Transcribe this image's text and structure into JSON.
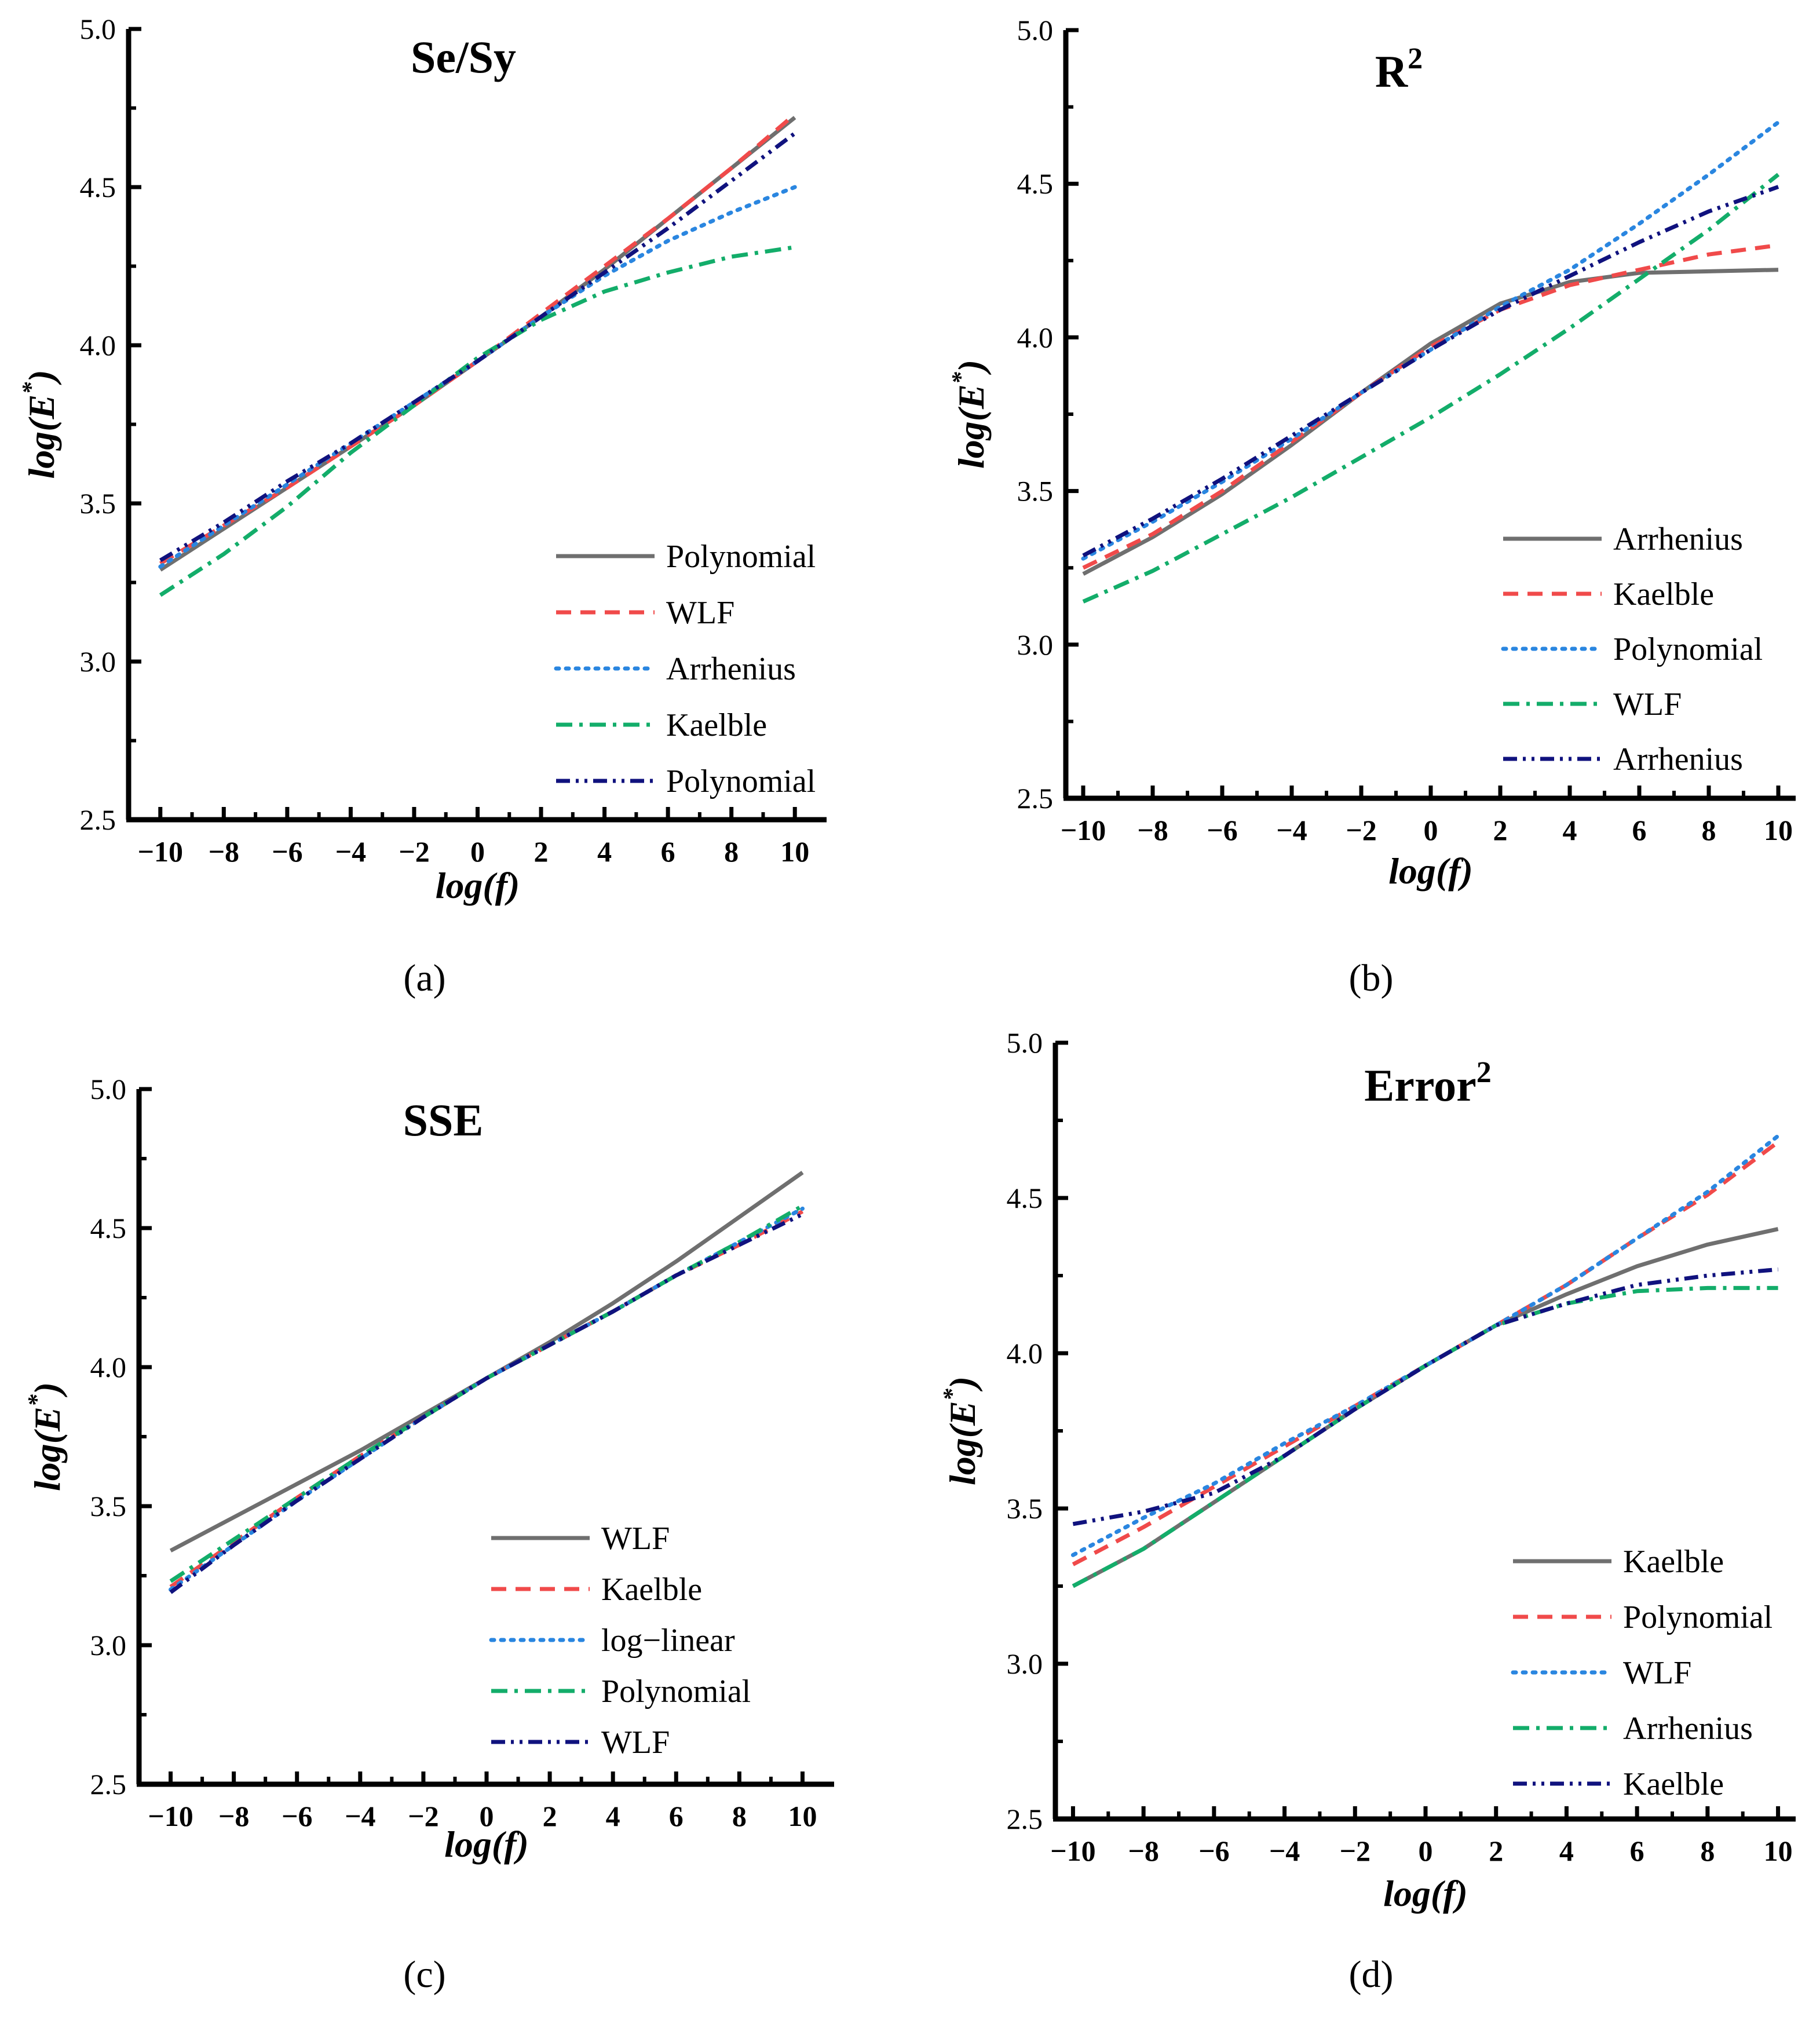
{
  "colors": {
    "gray": "#6f6f6f",
    "red": "#f04a4a",
    "blue": "#2a86e0",
    "green": "#13ad6a",
    "navy": "#10127e"
  },
  "styles": {
    "solid": "solid",
    "dashed": "dash",
    "dotted": "dot",
    "dashdot": "dashdot",
    "dashdotdot": "dashdotdot"
  },
  "chart_data": [
    {
      "type": "line",
      "panel_label": "(a)",
      "title": "Se/Sy",
      "xlabel": "log(f)",
      "ylabel": "log(E*)",
      "xlim": [
        -11,
        11
      ],
      "ylim": [
        2.5,
        5.0
      ],
      "xticks": [
        -10,
        -8,
        -6,
        -4,
        -2,
        0,
        2,
        4,
        6,
        8,
        10
      ],
      "yticks": [
        2.5,
        3.0,
        3.5,
        4.0,
        4.5,
        5.0
      ],
      "ytick_labels": [
        "2.5",
        "3.0",
        "3.5",
        "4.0",
        "4.5",
        "5.0"
      ],
      "xtick_labels": [
        "−10",
        "−8",
        "−6",
        "−4",
        "−2",
        "0",
        "2",
        "4",
        "6",
        "8",
        "10"
      ],
      "legend_position": "lower-right",
      "series": [
        {
          "name": "Polynomial",
          "color": "gray",
          "style": "solid",
          "x": [
            -10,
            -8,
            -6,
            -4,
            -2,
            0,
            2,
            4,
            6,
            8,
            10
          ],
          "y": [
            3.29,
            3.42,
            3.55,
            3.68,
            3.81,
            3.95,
            4.09,
            4.24,
            4.4,
            4.56,
            4.72
          ]
        },
        {
          "name": "WLF",
          "color": "red",
          "style": "dashed",
          "x": [
            -10,
            -8,
            -6,
            -4,
            -2,
            0,
            2,
            4,
            6,
            8,
            10
          ],
          "y": [
            3.31,
            3.43,
            3.55,
            3.68,
            3.81,
            3.95,
            4.1,
            4.25,
            4.4,
            4.56,
            4.73
          ]
        },
        {
          "name": "Arrhenius",
          "color": "blue",
          "style": "dotted",
          "x": [
            -10,
            -8,
            -6,
            -4,
            -2,
            0,
            2,
            4,
            6,
            8,
            10
          ],
          "y": [
            3.3,
            3.43,
            3.56,
            3.69,
            3.82,
            3.95,
            4.09,
            4.22,
            4.33,
            4.42,
            4.5
          ]
        },
        {
          "name": "Kaelble",
          "color": "green",
          "style": "dashdot",
          "x": [
            -10,
            -8,
            -6,
            -4,
            -2,
            0,
            2,
            4,
            6,
            8,
            10
          ],
          "y": [
            3.21,
            3.34,
            3.49,
            3.66,
            3.81,
            3.96,
            4.08,
            4.17,
            4.23,
            4.28,
            4.31
          ]
        },
        {
          "name": "Polynomial",
          "color": "navy",
          "style": "dashdotdot",
          "x": [
            -10,
            -8,
            -6,
            -4,
            -2,
            0,
            2,
            4,
            6,
            8,
            10
          ],
          "y": [
            3.32,
            3.44,
            3.57,
            3.69,
            3.82,
            3.95,
            4.09,
            4.23,
            4.37,
            4.52,
            4.67
          ]
        }
      ]
    },
    {
      "type": "line",
      "panel_label": "(b)",
      "title": "R2",
      "title_main": "R",
      "title_sup": "2",
      "xlabel": "log(f)",
      "ylabel": "log(E*)",
      "xlim": [
        -10.5,
        10.5
      ],
      "ylim": [
        2.5,
        5.0
      ],
      "xticks": [
        -10,
        -8,
        -6,
        -4,
        -2,
        0,
        2,
        4,
        6,
        8,
        10
      ],
      "yticks": [
        2.5,
        3.0,
        3.5,
        4.0,
        4.5,
        5.0
      ],
      "ytick_labels": [
        "2.5",
        "3.0",
        "3.5",
        "4.0",
        "4.5",
        "5.0"
      ],
      "xtick_labels": [
        "−10",
        "−8",
        "−6",
        "−4",
        "−2",
        "0",
        "2",
        "4",
        "6",
        "8",
        "10"
      ],
      "legend_position": "lower-right",
      "series": [
        {
          "name": "Arrhenius",
          "color": "gray",
          "style": "solid",
          "x": [
            -10,
            -8,
            -6,
            -4,
            -2,
            0,
            2,
            4,
            6,
            8,
            10
          ],
          "y": [
            3.23,
            3.35,
            3.49,
            3.65,
            3.82,
            3.98,
            4.11,
            4.18,
            4.21,
            4.215,
            4.22
          ]
        },
        {
          "name": "Kaelble",
          "color": "red",
          "style": "dashed",
          "x": [
            -10,
            -8,
            -6,
            -4,
            -2,
            0,
            2,
            4,
            6,
            8,
            10
          ],
          "y": [
            3.25,
            3.36,
            3.5,
            3.66,
            3.82,
            3.97,
            4.09,
            4.17,
            4.22,
            4.27,
            4.3
          ]
        },
        {
          "name": "Polynomial",
          "color": "blue",
          "style": "dotted",
          "x": [
            -10,
            -8,
            -6,
            -4,
            -2,
            0,
            2,
            4,
            6,
            8,
            10
          ],
          "y": [
            3.28,
            3.4,
            3.53,
            3.67,
            3.82,
            3.96,
            4.1,
            4.22,
            4.37,
            4.53,
            4.7
          ]
        },
        {
          "name": "WLF",
          "color": "green",
          "style": "dashdot",
          "x": [
            -10,
            -8,
            -6,
            -4,
            -2,
            0,
            2,
            4,
            6,
            8,
            10
          ],
          "y": [
            3.14,
            3.24,
            3.36,
            3.48,
            3.61,
            3.74,
            3.88,
            4.03,
            4.19,
            4.35,
            4.53
          ]
        },
        {
          "name": "Arrhenius",
          "color": "navy",
          "style": "dashdotdot",
          "x": [
            -10,
            -8,
            -6,
            -4,
            -2,
            0,
            2,
            4,
            6,
            8,
            10
          ],
          "y": [
            3.29,
            3.41,
            3.54,
            3.68,
            3.82,
            3.96,
            4.09,
            4.2,
            4.31,
            4.41,
            4.49
          ]
        }
      ]
    },
    {
      "type": "line",
      "panel_label": "(c)",
      "title": "SSE",
      "xlabel": "log(f)",
      "ylabel": "log(E*)",
      "xlim": [
        -11,
        11
      ],
      "ylim": [
        2.5,
        5.0
      ],
      "xticks": [
        -10,
        -8,
        -6,
        -4,
        -2,
        0,
        2,
        4,
        6,
        8,
        10
      ],
      "yticks": [
        2.5,
        3.0,
        3.5,
        4.0,
        4.5,
        5.0
      ],
      "ytick_labels": [
        "2.5",
        "3.0",
        "3.5",
        "4.0",
        "4.5",
        "5.0"
      ],
      "xtick_labels": [
        "−10",
        "−8",
        "−6",
        "−4",
        "−2",
        "0",
        "2",
        "4",
        "6",
        "8",
        "10"
      ],
      "legend_position": "lower-right",
      "series": [
        {
          "name": "WLF",
          "color": "gray",
          "style": "solid",
          "x": [
            -10,
            -8,
            -6,
            -4,
            -2,
            0,
            2,
            4,
            6,
            8,
            10
          ],
          "y": [
            3.34,
            3.46,
            3.58,
            3.7,
            3.83,
            3.96,
            4.09,
            4.23,
            4.38,
            4.54,
            4.7
          ]
        },
        {
          "name": "Kaelble",
          "color": "red",
          "style": "dashed",
          "x": [
            -10,
            -8,
            -6,
            -4,
            -2,
            0,
            2,
            4,
            6,
            8,
            10
          ],
          "y": [
            3.21,
            3.37,
            3.53,
            3.68,
            3.82,
            3.96,
            4.08,
            4.2,
            4.33,
            4.44,
            4.56
          ]
        },
        {
          "name": "log−linear",
          "color": "blue",
          "style": "dotted",
          "x": [
            -10,
            -8,
            -6,
            -4,
            -2,
            0,
            2,
            4,
            6,
            8,
            10
          ],
          "y": [
            3.2,
            3.36,
            3.52,
            3.67,
            3.82,
            3.96,
            4.08,
            4.2,
            4.33,
            4.45,
            4.57
          ]
        },
        {
          "name": "Polynomial",
          "color": "green",
          "style": "dashdot",
          "x": [
            -10,
            -8,
            -6,
            -4,
            -2,
            0,
            2,
            4,
            6,
            8,
            10
          ],
          "y": [
            3.23,
            3.38,
            3.53,
            3.68,
            3.82,
            3.96,
            4.08,
            4.2,
            4.33,
            4.45,
            4.58
          ]
        },
        {
          "name": "WLF",
          "color": "navy",
          "style": "dashdotdot",
          "x": [
            -10,
            -8,
            -6,
            -4,
            -2,
            0,
            2,
            4,
            6,
            8,
            10
          ],
          "y": [
            3.19,
            3.36,
            3.52,
            3.67,
            3.82,
            3.96,
            4.08,
            4.2,
            4.33,
            4.44,
            4.55
          ]
        }
      ]
    },
    {
      "type": "line",
      "panel_label": "(d)",
      "title": "Error2",
      "title_main": "Error",
      "title_sup": "2",
      "xlabel": "log(f)",
      "ylabel": "log(E*)",
      "xlim": [
        -10.5,
        10.5
      ],
      "ylim": [
        2.5,
        5.0
      ],
      "xticks": [
        -10,
        -8,
        -6,
        -4,
        -2,
        0,
        2,
        4,
        6,
        8,
        10
      ],
      "yticks": [
        2.5,
        3.0,
        3.5,
        4.0,
        4.5,
        5.0
      ],
      "ytick_labels": [
        "2.5",
        "3.0",
        "3.5",
        "4.0",
        "4.5",
        "5.0"
      ],
      "xtick_labels": [
        "−10",
        "−8",
        "−6",
        "−4",
        "−2",
        "0",
        "2",
        "4",
        "6",
        "8",
        "10"
      ],
      "legend_position": "lower-right",
      "series": [
        {
          "name": "Kaelble",
          "color": "gray",
          "style": "solid",
          "x": [
            -10,
            -8,
            -6,
            -4,
            -2,
            0,
            2,
            4,
            6,
            8,
            10
          ],
          "y": [
            3.25,
            3.37,
            3.52,
            3.67,
            3.82,
            3.96,
            4.09,
            4.19,
            4.28,
            4.35,
            4.4
          ]
        },
        {
          "name": "Polynomial",
          "color": "red",
          "style": "dashed",
          "x": [
            -10,
            -8,
            -6,
            -4,
            -2,
            0,
            2,
            4,
            6,
            8,
            10
          ],
          "y": [
            3.32,
            3.44,
            3.57,
            3.7,
            3.83,
            3.96,
            4.09,
            4.22,
            4.37,
            4.51,
            4.68
          ]
        },
        {
          "name": "WLF",
          "color": "blue",
          "style": "dotted",
          "x": [
            -10,
            -8,
            -6,
            -4,
            -2,
            0,
            2,
            4,
            6,
            8,
            10
          ],
          "y": [
            3.35,
            3.47,
            3.58,
            3.71,
            3.83,
            3.96,
            4.09,
            4.22,
            4.37,
            4.52,
            4.7
          ]
        },
        {
          "name": "Arrhenius",
          "color": "green",
          "style": "dashdot",
          "x": [
            -10,
            -8,
            -6,
            -4,
            -2,
            0,
            2,
            4,
            6,
            8,
            10
          ],
          "y": [
            3.25,
            3.37,
            3.52,
            3.67,
            3.82,
            3.96,
            4.09,
            4.16,
            4.2,
            4.21,
            4.21
          ]
        },
        {
          "name": "Kaelble",
          "color": "navy",
          "style": "dashdotdot",
          "x": [
            -10,
            -8,
            -6,
            -4,
            -2,
            0,
            2,
            4,
            6,
            8,
            10
          ],
          "y": [
            3.45,
            3.49,
            3.55,
            3.67,
            3.82,
            3.96,
            4.09,
            4.16,
            4.22,
            4.25,
            4.27
          ]
        }
      ]
    }
  ]
}
